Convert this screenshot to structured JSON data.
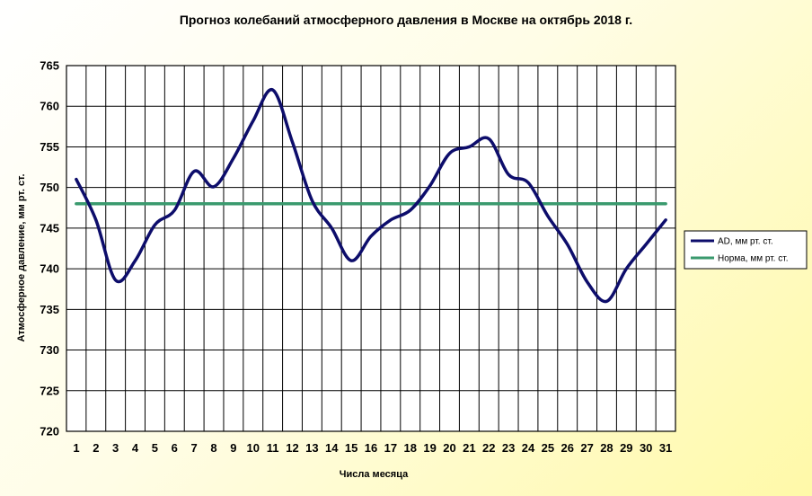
{
  "chart_data": {
    "type": "line",
    "title": "Прогноз колебаний атмосферного давления в Москве на октябрь 2018 г.",
    "xlabel": "Числа месяца",
    "ylabel": "Атмосферное давление, мм рт. ст.",
    "x": [
      1,
      2,
      3,
      4,
      5,
      6,
      7,
      8,
      9,
      10,
      11,
      12,
      13,
      14,
      15,
      16,
      17,
      18,
      19,
      20,
      21,
      22,
      23,
      24,
      25,
      26,
      27,
      28,
      29,
      30,
      31
    ],
    "ylim": [
      720,
      765
    ],
    "yticks": [
      720,
      725,
      730,
      735,
      740,
      745,
      750,
      755,
      760,
      765
    ],
    "grid": true,
    "legend_position": "right",
    "series": [
      {
        "name": "AD, мм рт. ст.",
        "color": "#0d0d6b",
        "values": [
          751,
          746,
          738.6,
          741,
          745.4,
          747.2,
          752,
          750.1,
          753.6,
          758.2,
          762,
          755.6,
          748.4,
          745,
          741,
          744,
          746,
          747.2,
          750.2,
          754.2,
          755,
          756,
          751.6,
          750.6,
          746.5,
          743,
          738.4,
          736,
          740,
          743,
          746
        ]
      },
      {
        "name": "Норма, мм рт. ст.",
        "color": "#3a9a6e",
        "values": [
          748,
          748,
          748,
          748,
          748,
          748,
          748,
          748,
          748,
          748,
          748,
          748,
          748,
          748,
          748,
          748,
          748,
          748,
          748,
          748,
          748,
          748,
          748,
          748,
          748,
          748,
          748,
          748,
          748,
          748,
          748
        ]
      }
    ]
  }
}
